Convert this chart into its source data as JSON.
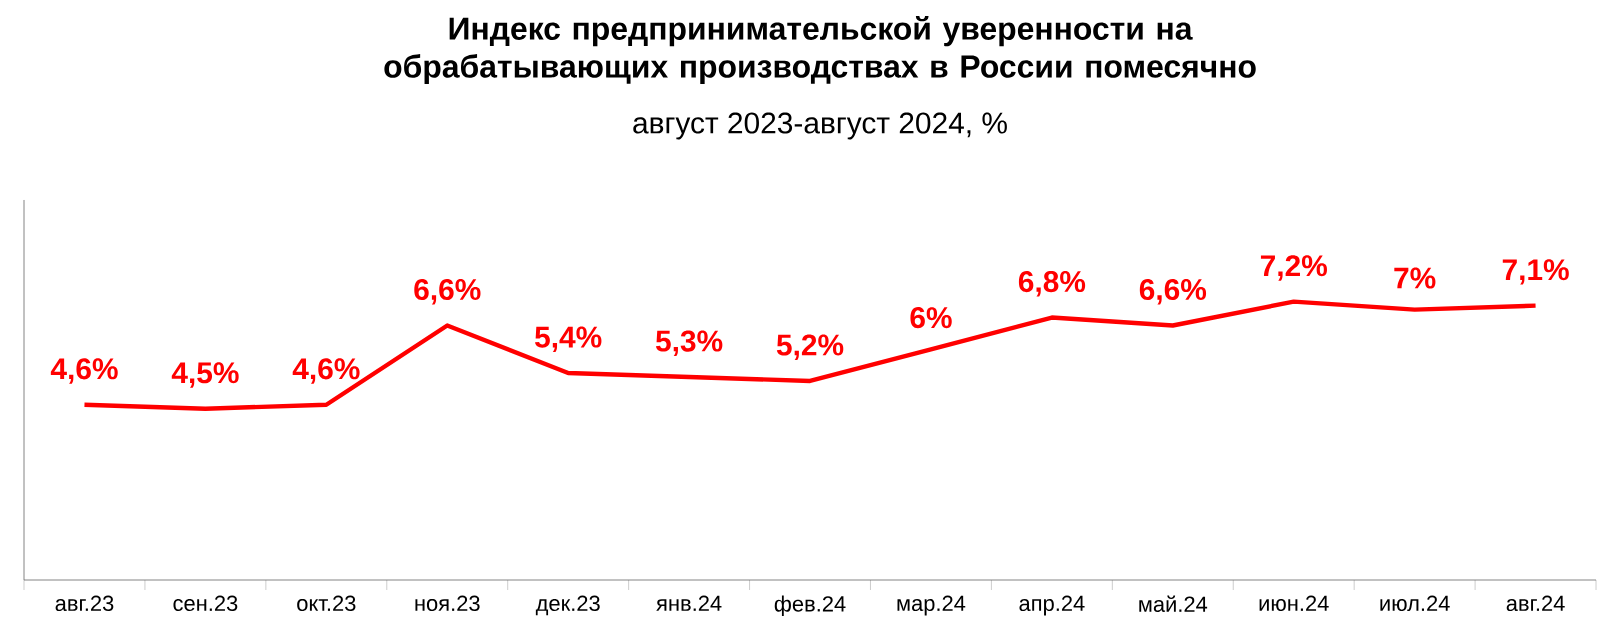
{
  "chart_data": {
    "type": "line",
    "title": "Индекс предпринимательской уверенности на обрабатывающих производствах в России помесячно",
    "subtitle": "август 2023-август 2024, %",
    "categories": [
      "авг.23",
      "сен.23",
      "окт.23",
      "ноя.23",
      "дек.23",
      "янв.24",
      "фев.24",
      "мар.24",
      "апр.24",
      "май.24",
      "июн.24",
      "июл.24",
      "авг.24"
    ],
    "values": [
      4.6,
      4.5,
      4.6,
      6.6,
      5.4,
      5.3,
      5.2,
      6,
      6.8,
      6.6,
      7.2,
      7,
      7.1
    ],
    "value_labels": [
      "4,6%",
      "4,5%",
      "4,6%",
      "6,6%",
      "5,4%",
      "5,3%",
      "5,2%",
      "6%",
      "6,8%",
      "6,6%",
      "7,2%",
      "7%",
      "7,1%"
    ],
    "color": "#ff0000",
    "grid": false,
    "marker": "none",
    "line_style": "solid"
  }
}
